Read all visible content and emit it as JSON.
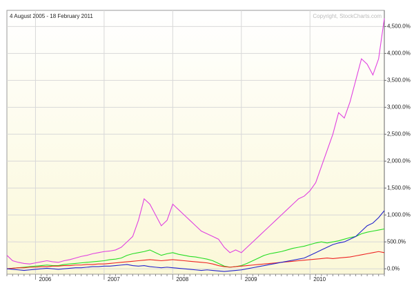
{
  "chart_data": {
    "type": "line",
    "title": "4 August 2005 - 18 February 2011",
    "subtitle": "Copyright, StockCharts.com",
    "categories": [
      null,
      null,
      null,
      null,
      null,
      "2006",
      null,
      null,
      null,
      null,
      null,
      null,
      null,
      null,
      null,
      null,
      null,
      "2007",
      null,
      null,
      null,
      null,
      null,
      null,
      null,
      null,
      null,
      null,
      null,
      "2008",
      null,
      null,
      null,
      null,
      null,
      null,
      null,
      null,
      null,
      null,
      null,
      "2009",
      null,
      null,
      null,
      null,
      null,
      null,
      null,
      null,
      null,
      null,
      null,
      "2010",
      null,
      null,
      null,
      null,
      null,
      null,
      null,
      null,
      null,
      null,
      null,
      null,
      null
    ],
    "series": [
      {
        "color": "#e040e0",
        "values": [
          250,
          150,
          120,
          100,
          90,
          110,
          130,
          150,
          130,
          120,
          150,
          170,
          200,
          230,
          250,
          280,
          300,
          320,
          330,
          350,
          400,
          500,
          600,
          900,
          1300,
          1200,
          1000,
          800,
          900,
          1200,
          1100,
          1000,
          900,
          800,
          700,
          650,
          600,
          550,
          400,
          300,
          350,
          300,
          400,
          500,
          600,
          700,
          800,
          900,
          1000,
          1100,
          1200,
          1300,
          1350,
          1450,
          1600,
          1900,
          2200,
          2500,
          2900,
          2800,
          3100,
          3500,
          3900,
          3800,
          3600,
          3900,
          4650
        ]
      },
      {
        "color": "#22dd22",
        "values": [
          0,
          10,
          20,
          30,
          40,
          50,
          60,
          70,
          60,
          60,
          80,
          90,
          100,
          110,
          120,
          130,
          140,
          150,
          170,
          180,
          200,
          250,
          280,
          300,
          320,
          350,
          300,
          250,
          280,
          300,
          270,
          250,
          230,
          220,
          200,
          180,
          150,
          100,
          50,
          30,
          40,
          60,
          100,
          150,
          200,
          250,
          280,
          300,
          320,
          350,
          380,
          400,
          420,
          450,
          480,
          500,
          480,
          500,
          520,
          550,
          580,
          600,
          650,
          680,
          700,
          720,
          740
        ]
      },
      {
        "color": "#ee2222",
        "values": [
          0,
          10,
          20,
          20,
          30,
          30,
          40,
          40,
          50,
          50,
          60,
          60,
          70,
          70,
          80,
          80,
          90,
          90,
          100,
          110,
          120,
          130,
          140,
          150,
          160,
          170,
          160,
          150,
          160,
          170,
          160,
          150,
          140,
          130,
          120,
          110,
          90,
          60,
          40,
          30,
          40,
          50,
          60,
          70,
          80,
          90,
          100,
          110,
          120,
          130,
          140,
          150,
          160,
          170,
          180,
          190,
          200,
          190,
          200,
          210,
          220,
          240,
          260,
          280,
          300,
          320,
          300
        ]
      },
      {
        "color": "#2222cc",
        "values": [
          0,
          -10,
          -20,
          -30,
          -20,
          -10,
          0,
          10,
          0,
          -10,
          0,
          10,
          20,
          20,
          30,
          40,
          40,
          50,
          50,
          60,
          70,
          80,
          60,
          50,
          60,
          40,
          30,
          20,
          30,
          20,
          10,
          0,
          -10,
          -20,
          -30,
          -20,
          -30,
          -40,
          -50,
          -40,
          -30,
          -20,
          0,
          20,
          40,
          60,
          80,
          100,
          120,
          140,
          160,
          180,
          200,
          250,
          300,
          350,
          400,
          450,
          480,
          500,
          550,
          600,
          700,
          800,
          850,
          950,
          1080
        ]
      }
    ],
    "ylim": [
      -100,
      4800
    ],
    "yticks": [
      {
        "value": 0,
        "label": "0.0%"
      },
      {
        "value": 500,
        "label": "500.0%"
      },
      {
        "value": 1000,
        "label": "1,000.0%"
      },
      {
        "value": 1500,
        "label": "1,500.0%"
      },
      {
        "value": 2000,
        "label": "2,000.0%"
      },
      {
        "value": 2500,
        "label": "2,500.0%"
      },
      {
        "value": 3000,
        "label": "3,000.0%"
      },
      {
        "value": 3500,
        "label": "3,500.0%"
      },
      {
        "value": 4000,
        "label": "4,000.0%"
      },
      {
        "value": 4500,
        "label": "4,500.0%"
      }
    ],
    "grid": true
  }
}
